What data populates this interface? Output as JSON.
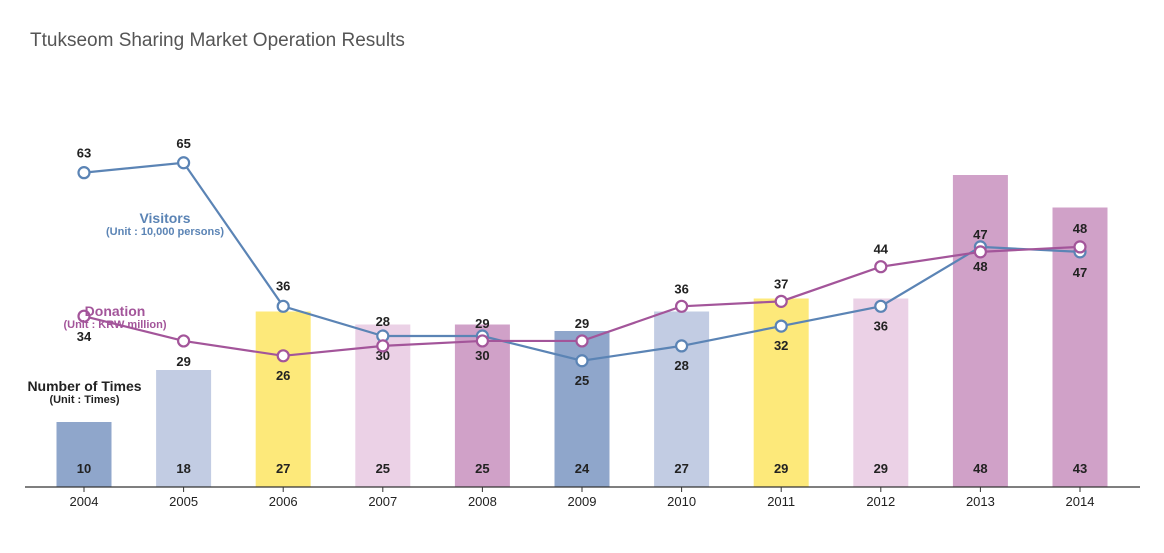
{
  "chart_data": {
    "type": "bar+line",
    "title": "Ttukseom Sharing Market Operation Results",
    "categories": [
      "2004",
      "2005",
      "2006",
      "2007",
      "2008",
      "2009",
      "2010",
      "2011",
      "2012",
      "2013",
      "2014"
    ],
    "bar_series": {
      "name": "Number of Times",
      "unit": "(Unit : Times)",
      "values": [
        10,
        18,
        27,
        25,
        25,
        24,
        27,
        29,
        29,
        48,
        43
      ],
      "colors": [
        "#8fa6cb",
        "#c2cce3",
        "#fde97a",
        "#ebd1e6",
        "#d0a1c8",
        "#8fa6cb",
        "#c2cce3",
        "#fde97a",
        "#ebd1e6",
        "#d0a1c8",
        "#d0a1c8"
      ]
    },
    "line_series": [
      {
        "name": "Visitors",
        "unit": "(Unit : 10,000 persons)",
        "color": "#5b84b5",
        "values": [
          63,
          65,
          36,
          30,
          30,
          25,
          28,
          32,
          36,
          48,
          47
        ]
      },
      {
        "name": "Donation",
        "unit": "(Unit : KRW million)",
        "color": "#a3559a",
        "values": [
          34,
          29,
          26,
          28,
          29,
          29,
          36,
          37,
          44,
          47,
          48
        ]
      }
    ]
  }
}
